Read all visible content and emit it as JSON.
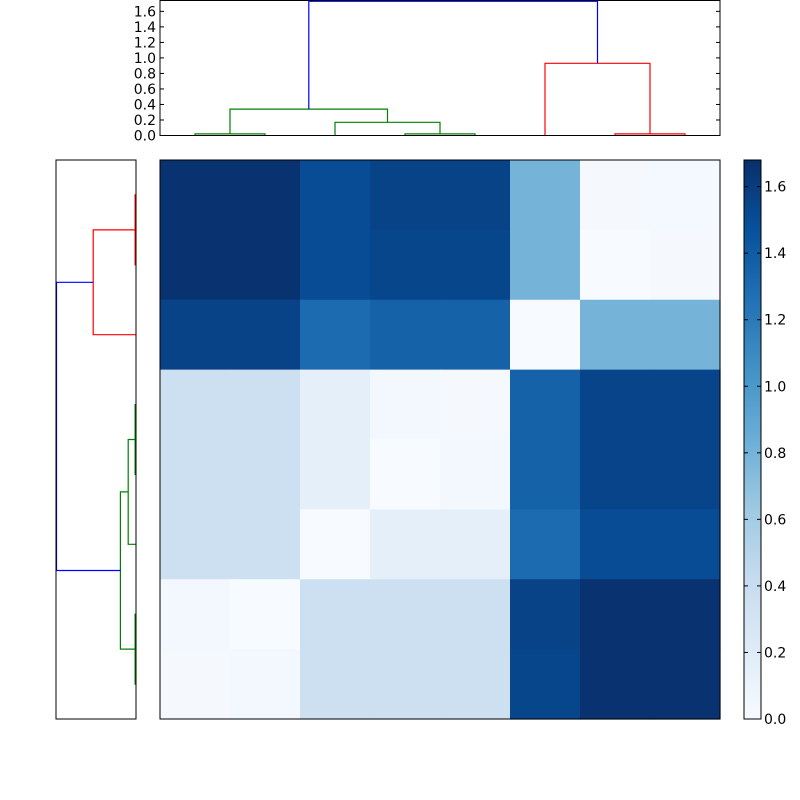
{
  "chart_data": [
    {
      "type": "heatmap",
      "rows": 8,
      "cols": 8,
      "values": [
        [
          1.66,
          1.66,
          1.5,
          1.56,
          1.56,
          0.8,
          0.02,
          0.03
        ],
        [
          1.66,
          1.66,
          1.5,
          1.54,
          1.54,
          0.8,
          0.0,
          0.02
        ],
        [
          1.56,
          1.56,
          1.3,
          1.36,
          1.36,
          0.0,
          0.8,
          0.8
        ],
        [
          0.36,
          0.36,
          0.16,
          0.04,
          0.02,
          1.36,
          1.55,
          1.55
        ],
        [
          0.36,
          0.36,
          0.16,
          0.0,
          0.04,
          1.36,
          1.55,
          1.55
        ],
        [
          0.36,
          0.36,
          0.0,
          0.16,
          0.16,
          1.3,
          1.5,
          1.5
        ],
        [
          0.04,
          0.0,
          0.36,
          0.36,
          0.36,
          1.56,
          1.66,
          1.66
        ],
        [
          0.02,
          0.04,
          0.36,
          0.36,
          0.36,
          1.54,
          1.66,
          1.66
        ]
      ],
      "colormap": "Blues",
      "vmin": 0.0,
      "vmax": 1.68
    },
    {
      "type": "line",
      "role": "top-dendrogram",
      "y_ticks": [
        "0.0",
        "0.2",
        "0.4",
        "0.6",
        "0.8",
        "1.0",
        "1.2",
        "1.4",
        "1.6"
      ],
      "ylim": [
        0,
        1.74
      ],
      "xlim": [
        0,
        80
      ],
      "links": [
        {
          "x": [
            5,
            5,
            15,
            15
          ],
          "y": [
            0,
            0.02,
            0.02,
            0
          ],
          "color": "#008000"
        },
        {
          "x": [
            35,
            35,
            45,
            45
          ],
          "y": [
            0,
            0.02,
            0.02,
            0
          ],
          "color": "#008000"
        },
        {
          "x": [
            25,
            25,
            40,
            40
          ],
          "y": [
            0,
            0.17,
            0.17,
            0.02
          ],
          "color": "#008000"
        },
        {
          "x": [
            10,
            10,
            32.5,
            32.5
          ],
          "y": [
            0.02,
            0.34,
            0.34,
            0.17
          ],
          "color": "#008000"
        },
        {
          "x": [
            65,
            65,
            75,
            75
          ],
          "y": [
            0,
            0.02,
            0.02,
            0
          ],
          "color": "#ff0000"
        },
        {
          "x": [
            55,
            55,
            70,
            70
          ],
          "y": [
            0,
            0.93,
            0.93,
            0.02
          ],
          "color": "#ff0000"
        },
        {
          "x": [
            21.25,
            21.25,
            62.5,
            62.5
          ],
          "y": [
            0.34,
            1.73,
            1.73,
            0.93
          ],
          "color": "#0000ff"
        }
      ]
    },
    {
      "type": "line",
      "role": "left-dendrogram",
      "xlim": [
        0,
        1.74
      ],
      "ylim": [
        0,
        80
      ],
      "links": [
        {
          "x": [
            0,
            0.02,
            0.02,
            0
          ],
          "y": [
            5,
            5,
            15,
            15
          ],
          "color": "#ff0000"
        },
        {
          "x": [
            0,
            0.93,
            0.93,
            0.02
          ],
          "y": [
            25,
            25,
            10,
            10
          ],
          "color": "#ff0000"
        },
        {
          "x": [
            0,
            0.02,
            0.02,
            0
          ],
          "y": [
            35,
            35,
            45,
            45
          ],
          "color": "#008000"
        },
        {
          "x": [
            0,
            0.17,
            0.17,
            0.02
          ],
          "y": [
            55,
            55,
            40,
            40
          ],
          "color": "#008000"
        },
        {
          "x": [
            0,
            0.02,
            0.02,
            0
          ],
          "y": [
            65,
            65,
            75,
            75
          ],
          "color": "#008000"
        },
        {
          "x": [
            0.17,
            0.34,
            0.34,
            0.02
          ],
          "y": [
            47.5,
            47.5,
            70,
            70
          ],
          "color": "#008000"
        },
        {
          "x": [
            0.93,
            1.73,
            1.73,
            0.34
          ],
          "y": [
            17.5,
            17.5,
            58.75,
            58.75
          ],
          "color": "#0000ff"
        }
      ]
    },
    {
      "type": "colorbar",
      "ticks": [
        "0.0",
        "0.2",
        "0.4",
        "0.6",
        "0.8",
        "1.0",
        "1.2",
        "1.4",
        "1.6"
      ],
      "vmin": 0.0,
      "vmax": 1.68
    }
  ]
}
